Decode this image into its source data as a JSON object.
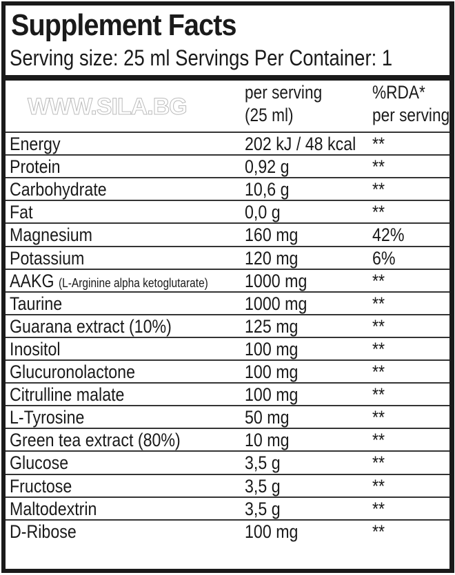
{
  "title": "Supplement Facts",
  "serving_line": "Serving size: 25 ml  Servings Per Container: 1",
  "header": {
    "per_serving_1": "per serving",
    "per_serving_2": "(25 ml)",
    "rda_1": "%RDA*",
    "rda_2": "per serving"
  },
  "rows": [
    {
      "name": "Energy",
      "amount": "202 kJ / 48 kcal",
      "rda": "**"
    },
    {
      "name": "Protein",
      "amount": "0,92 g",
      "rda": "**"
    },
    {
      "name": "Carbohydrate",
      "amount": "10,6 g",
      "rda": "**"
    },
    {
      "name": "Fat",
      "amount": "0,0 g",
      "rda": "**"
    },
    {
      "name": "Magnesium",
      "amount": "160 mg",
      "rda": "42%"
    },
    {
      "name": "Potassium",
      "amount": "120 mg",
      "rda": "6%"
    },
    {
      "name": "AAKG",
      "note": "(L-Arginine alpha ketoglutarate)",
      "amount": "1000 mg",
      "rda": "**"
    },
    {
      "name": "Taurine",
      "amount": "1000 mg",
      "rda": "**"
    },
    {
      "name": "Guarana extract (10%)",
      "amount": "125 mg",
      "rda": "**"
    },
    {
      "name": "Inositol",
      "amount": "100 mg",
      "rda": "**"
    },
    {
      "name": "Glucuronolactone",
      "amount": "100 mg",
      "rda": "**"
    },
    {
      "name": "Citrulline malate",
      "amount": "100 mg",
      "rda": "**"
    },
    {
      "name": "L-Tyrosine",
      "amount": "50 mg",
      "rda": "**"
    },
    {
      "name": "Green tea extract (80%)",
      "amount": "10 mg",
      "rda": "**"
    },
    {
      "name": "Glucose",
      "amount": "3,5 g",
      "rda": "**"
    },
    {
      "name": "Fructose",
      "amount": "3,5 g",
      "rda": "**"
    },
    {
      "name": "Maltodextrin",
      "amount": "3,5 g",
      "rda": "**"
    },
    {
      "name": "D-Ribose",
      "amount": "100 mg",
      "rda": "**"
    }
  ],
  "watermark": "WWW.SILA.BG"
}
